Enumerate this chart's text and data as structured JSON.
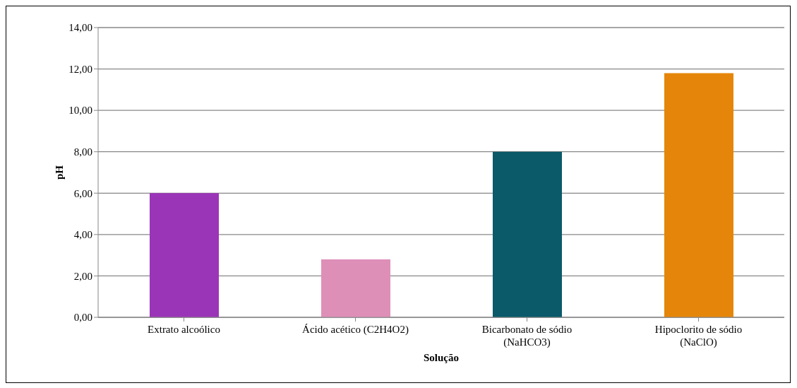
{
  "chart_data": {
    "type": "bar",
    "xlabel": "Solução",
    "ylabel": "pH",
    "categories": [
      "Extrato alcoólico",
      "Ácido acético (C2H4O2)",
      "Bicarbonato de sódio\n(NaHCO3)",
      "Hipoclorito de sódio\n(NaClO)"
    ],
    "values": [
      6.0,
      2.8,
      8.0,
      11.8
    ],
    "colors": [
      "#9b35b8",
      "#de8fb8",
      "#0a5a6a",
      "#e5860a"
    ],
    "ylim": [
      0,
      14
    ],
    "yticks": [
      {
        "value": 0,
        "label": "0,00"
      },
      {
        "value": 2,
        "label": "2,00"
      },
      {
        "value": 4,
        "label": "4,00"
      },
      {
        "value": 6,
        "label": "6,00"
      },
      {
        "value": 8,
        "label": "8,00"
      },
      {
        "value": 10,
        "label": "10,00"
      },
      {
        "value": 12,
        "label": "12,00"
      },
      {
        "value": 14,
        "label": "14,00"
      }
    ],
    "grid": "y"
  }
}
